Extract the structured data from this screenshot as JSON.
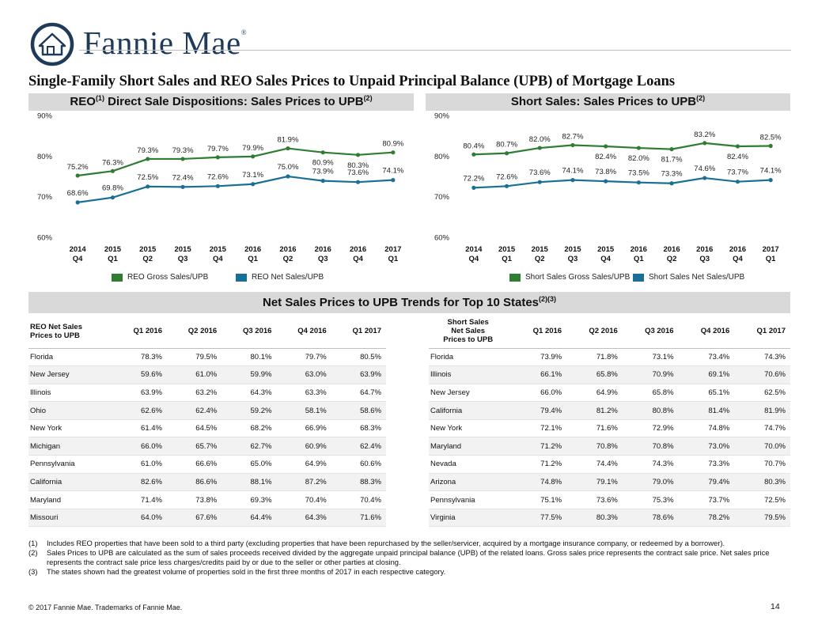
{
  "header": {
    "brand": "Fannie Mae",
    "brand_mark": "®",
    "logo_icon": "house-circle-icon",
    "page_title": "Single-Family Short Sales and REO Sales Prices to Unpaid Principal Balance (UPB) of Mortgage Loans"
  },
  "colors": {
    "gross": "#2e7d32",
    "net": "#1a6f96",
    "bar": "#d9d9d9"
  },
  "reo_panel": {
    "title_a": "REO",
    "title_sup_a": "(1)",
    "title_b": " Direct Sale Dispositions: Sales Prices to UPB",
    "title_sup_b": "(2)"
  },
  "short_panel": {
    "title": "Short Sales: Sales Prices to UPB",
    "title_sup": "(2)"
  },
  "chart_data": [
    {
      "type": "line",
      "categories": [
        [
          "2014",
          "Q4"
        ],
        [
          "2015",
          "Q1"
        ],
        [
          "2015",
          "Q2"
        ],
        [
          "2015",
          "Q3"
        ],
        [
          "2015",
          "Q4"
        ],
        [
          "2016",
          "Q1"
        ],
        [
          "2016",
          "Q2"
        ],
        [
          "2016",
          "Q3"
        ],
        [
          "2016",
          "Q4"
        ],
        [
          "2017",
          "Q1"
        ]
      ],
      "y_ticks": [
        "60%",
        "70%",
        "80%",
        "90%"
      ],
      "ylim": [
        60,
        90
      ],
      "series": [
        {
          "name": "REO Gross Sales/UPB",
          "values": [
            75.2,
            76.3,
            79.3,
            79.3,
            79.7,
            79.9,
            81.9,
            80.9,
            80.3,
            80.9
          ],
          "labels": [
            "75.2%",
            "76.3%",
            "79.3%",
            "79.3%",
            "79.7%",
            "79.9%",
            "81.9%",
            "80.9%",
            "80.3%",
            "80.9%"
          ]
        },
        {
          "name": "REO Net Sales/UPB",
          "values": [
            68.6,
            69.8,
            72.5,
            72.4,
            72.6,
            73.1,
            75.0,
            73.9,
            73.6,
            74.1
          ],
          "labels": [
            "68.6%",
            "69.8%",
            "72.5%",
            "72.4%",
            "72.6%",
            "73.1%",
            "75.0%",
            "73.9%",
            "73.6%",
            "74.1%"
          ]
        }
      ],
      "legend": "bottom"
    },
    {
      "type": "line",
      "categories": [
        [
          "2014",
          "Q4"
        ],
        [
          "2015",
          "Q1"
        ],
        [
          "2015",
          "Q2"
        ],
        [
          "2015",
          "Q3"
        ],
        [
          "2015",
          "Q4"
        ],
        [
          "2016",
          "Q1"
        ],
        [
          "2016",
          "Q2"
        ],
        [
          "2016",
          "Q3"
        ],
        [
          "2016",
          "Q4"
        ],
        [
          "2017",
          "Q1"
        ]
      ],
      "y_ticks": [
        "60%",
        "70%",
        "80%",
        "90%"
      ],
      "ylim": [
        60,
        90
      ],
      "series": [
        {
          "name": "Short Sales Gross Sales/UPB",
          "values": [
            80.4,
            80.7,
            82.0,
            82.7,
            82.4,
            82.0,
            81.7,
            83.2,
            82.4,
            82.5
          ],
          "labels": [
            "80.4%",
            "80.7%",
            "82.0%",
            "82.7%",
            "82.4%",
            "82.0%",
            "81.7%",
            "83.2%",
            "82.4%",
            "82.5%"
          ]
        },
        {
          "name": "Short Sales Net Sales/UPB",
          "values": [
            72.2,
            72.6,
            73.6,
            74.1,
            73.8,
            73.5,
            73.3,
            74.6,
            73.7,
            74.1
          ],
          "labels": [
            "72.2%",
            "72.6%",
            "73.6%",
            "74.1%",
            "73.8%",
            "73.5%",
            "73.3%",
            "74.6%",
            "73.7%",
            "74.1%"
          ]
        }
      ],
      "legend": "bottom"
    }
  ],
  "states_section": {
    "title": "Net Sales Prices to UPB Trends for Top 10 States",
    "title_sup": "(2)(3)"
  },
  "reo_table": {
    "header_label": "REO Net Sales\nPrices to UPB",
    "columns": [
      "Q1 2016",
      "Q2 2016",
      "Q3 2016",
      "Q4 2016",
      "Q1 2017"
    ],
    "rows": [
      [
        "Florida",
        "78.3%",
        "79.5%",
        "80.1%",
        "79.7%",
        "80.5%"
      ],
      [
        "New Jersey",
        "59.6%",
        "61.0%",
        "59.9%",
        "63.0%",
        "63.9%"
      ],
      [
        "Illinois",
        "63.9%",
        "63.2%",
        "64.3%",
        "63.3%",
        "64.7%"
      ],
      [
        "Ohio",
        "62.6%",
        "62.4%",
        "59.2%",
        "58.1%",
        "58.6%"
      ],
      [
        "New York",
        "61.4%",
        "64.5%",
        "68.2%",
        "66.9%",
        "68.3%"
      ],
      [
        "Michigan",
        "66.0%",
        "65.7%",
        "62.7%",
        "60.9%",
        "62.4%"
      ],
      [
        "Pennsylvania",
        "61.0%",
        "66.6%",
        "65.0%",
        "64.9%",
        "60.6%"
      ],
      [
        "California",
        "82.6%",
        "86.6%",
        "88.1%",
        "87.2%",
        "88.3%"
      ],
      [
        "Maryland",
        "71.4%",
        "73.8%",
        "69.3%",
        "70.4%",
        "70.4%"
      ],
      [
        "Missouri",
        "64.0%",
        "67.6%",
        "64.4%",
        "64.3%",
        "71.6%"
      ]
    ]
  },
  "short_table": {
    "header_label": "Short Sales\nNet Sales\nPrices to UPB",
    "columns": [
      "Q1 2016",
      "Q2 2016",
      "Q3 2016",
      "Q4 2016",
      "Q1 2017"
    ],
    "rows": [
      [
        "Florida",
        "73.9%",
        "71.8%",
        "73.1%",
        "73.4%",
        "74.3%"
      ],
      [
        "Illinois",
        "66.1%",
        "65.8%",
        "70.9%",
        "69.1%",
        "70.6%"
      ],
      [
        "New Jersey",
        "66.0%",
        "64.9%",
        "65.8%",
        "65.1%",
        "62.5%"
      ],
      [
        "California",
        "79.4%",
        "81.2%",
        "80.8%",
        "81.4%",
        "81.9%"
      ],
      [
        "New York",
        "72.1%",
        "71.6%",
        "72.9%",
        "74.8%",
        "74.7%"
      ],
      [
        "Maryland",
        "71.2%",
        "70.8%",
        "70.8%",
        "73.0%",
        "70.0%"
      ],
      [
        "Nevada",
        "71.2%",
        "74.4%",
        "74.3%",
        "73.3%",
        "70.7%"
      ],
      [
        "Arizona",
        "74.8%",
        "79.1%",
        "79.0%",
        "79.4%",
        "80.3%"
      ],
      [
        "Pennsylvania",
        "75.1%",
        "73.6%",
        "75.3%",
        "73.7%",
        "72.5%"
      ],
      [
        "Virginia",
        "77.5%",
        "80.3%",
        "78.6%",
        "78.2%",
        "79.5%"
      ]
    ]
  },
  "footnotes": [
    {
      "num": "(1)",
      "text": "Includes REO properties that have been sold to a third party (excluding properties that have been repurchased by the seller/servicer, acquired by a mortgage insurance company, or redeemed by a borrower)."
    },
    {
      "num": "(2)",
      "text": "Sales Prices to UPB are calculated as the sum of sales proceeds received divided by the aggregate unpaid principal balance (UPB) of the related loans. Gross sales price represents the contract sale price. Net sales price represents the contract sale price less charges/credits paid by or due to the seller or other parties at closing."
    },
    {
      "num": "(3)",
      "text": "The states shown had the greatest volume of properties sold in the first three months of 2017 in each respective category."
    }
  ],
  "footer": {
    "copyright": "© 2017 Fannie Mae. Trademarks of Fannie Mae.",
    "page_number": "14"
  }
}
